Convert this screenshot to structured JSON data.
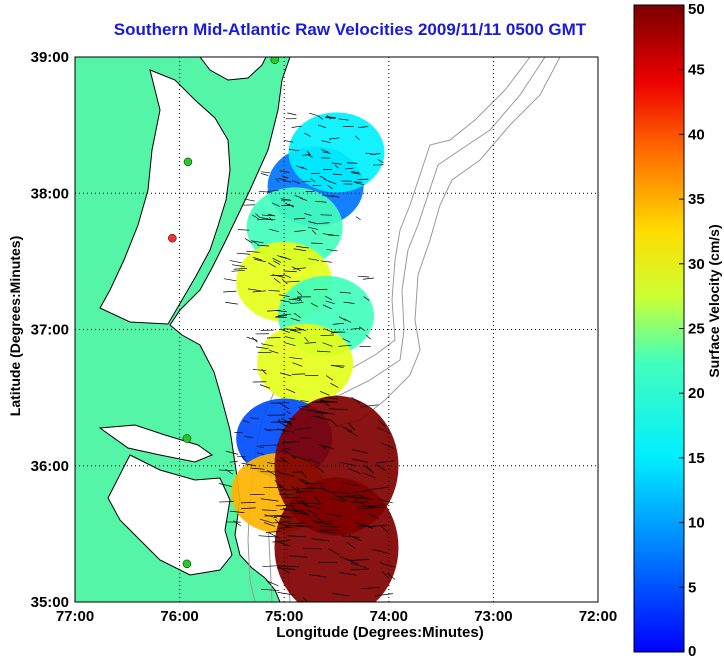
{
  "chart_data": {
    "type": "heatmap",
    "title": "Southern Mid-Atlantic Raw Velocities 2009/11/11 0500 GMT",
    "xlabel": "Longitude (Degrees:Minutes)",
    "ylabel": "Latitude (Degrees:Minutes)",
    "colorbar_label": "Surface Velocity (cm/s)",
    "x_ticks": [
      "77:00",
      "76:00",
      "75:00",
      "74:00",
      "73:00",
      "72:00"
    ],
    "y_ticks": [
      "39:00",
      "38:00",
      "37:00",
      "36:00",
      "35:00"
    ],
    "colorbar_ticks": [
      "0",
      "5",
      "10",
      "15",
      "20",
      "25",
      "30",
      "35",
      "40",
      "45",
      "50"
    ],
    "xlim": [
      -77,
      -72
    ],
    "ylim": [
      35,
      39
    ],
    "clim": [
      0,
      50
    ],
    "colormap": "jet",
    "grid": true,
    "land_color": "#55f5a8",
    "coastline_color": "#000000",
    "bathymetry_color": "#9a9a9a",
    "station_markers": [
      {
        "lon": -75.09,
        "lat": 38.98,
        "color": "#22cc22"
      },
      {
        "lon": -75.92,
        "lat": 38.23,
        "color": "#22cc22"
      },
      {
        "lon": -76.07,
        "lat": 37.67,
        "color": "#ee3333"
      },
      {
        "lon": -75.93,
        "lat": 36.2,
        "color": "#22cc22"
      },
      {
        "lon": -75.93,
        "lat": 35.28,
        "color": "#22cc22"
      }
    ],
    "velocity_regions": [
      {
        "lon": -74.7,
        "lat": 38.05,
        "speed": 12
      },
      {
        "lon": -74.5,
        "lat": 38.3,
        "speed": 18
      },
      {
        "lon": -74.9,
        "lat": 37.75,
        "speed": 22
      },
      {
        "lon": -75.0,
        "lat": 37.35,
        "speed": 30
      },
      {
        "lon": -74.6,
        "lat": 37.1,
        "speed": 22
      },
      {
        "lon": -74.8,
        "lat": 36.75,
        "speed": 30
      },
      {
        "lon": -75.0,
        "lat": 36.2,
        "speed": 10
      },
      {
        "lon": -75.05,
        "lat": 35.8,
        "speed": 35
      },
      {
        "lon": -74.5,
        "lat": 36.0,
        "speed": 50
      },
      {
        "lon": -74.5,
        "lat": 35.4,
        "speed": 50
      }
    ]
  }
}
